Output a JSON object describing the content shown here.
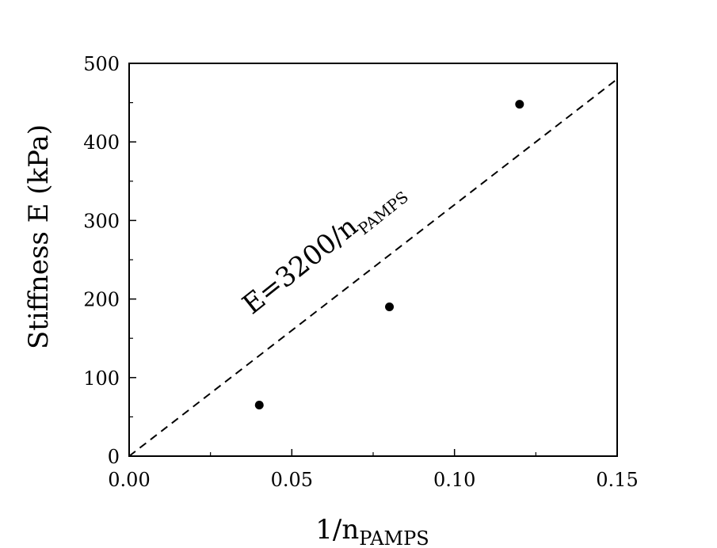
{
  "chart_data": {
    "type": "scatter",
    "title": "",
    "xlabel_main": "1/n",
    "xlabel_sub": "PAMPS",
    "ylabel": "Stiffness E (kPa)",
    "xlim": [
      0,
      0.15
    ],
    "ylim": [
      0,
      500
    ],
    "xticks": [
      0,
      0.05,
      0.1,
      0.15
    ],
    "xtick_labels": [
      "0.00",
      "0.05",
      "0.10",
      "0.15"
    ],
    "yticks": [
      0,
      100,
      200,
      300,
      400,
      500
    ],
    "ytick_labels": [
      "0",
      "100",
      "200",
      "300",
      "400",
      "500"
    ],
    "grid": false,
    "points": [
      {
        "x": 0.04,
        "y": 65
      },
      {
        "x": 0.08,
        "y": 190
      },
      {
        "x": 0.12,
        "y": 448
      }
    ],
    "fit_line": {
      "slope": 3200,
      "intercept": 0,
      "style": "dashed"
    },
    "annotation_main": "E=3200/n",
    "annotation_sub": "PAMPS",
    "marker_color": "#000000",
    "line_color": "#000000"
  }
}
